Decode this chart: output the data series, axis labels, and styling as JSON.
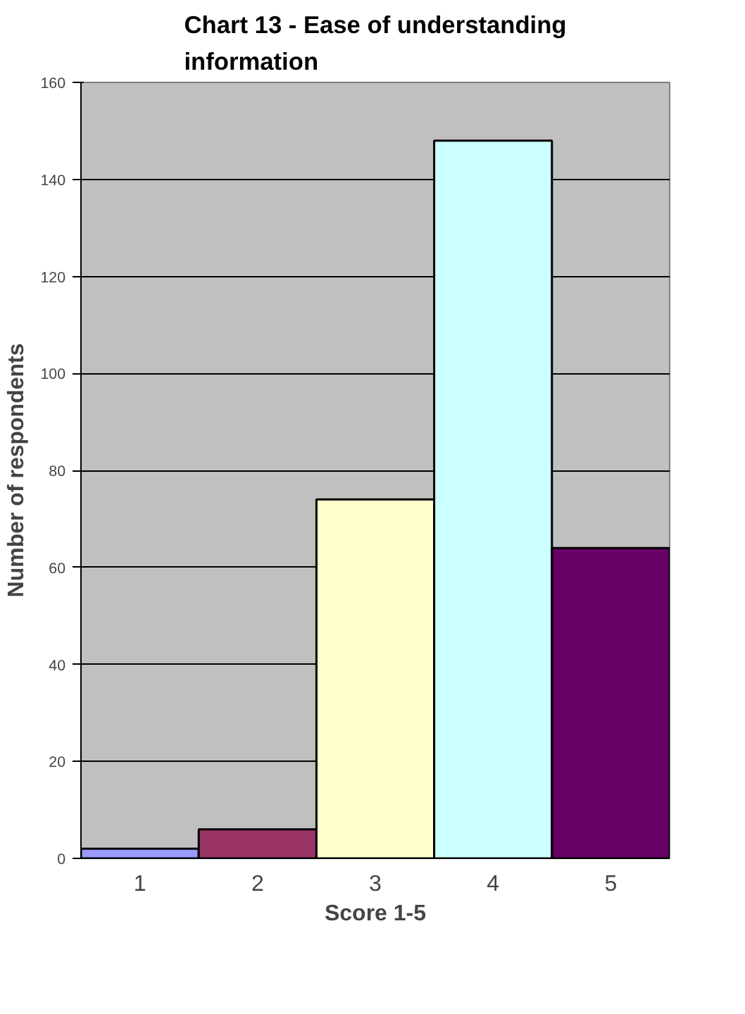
{
  "chart_data": {
    "type": "bar",
    "title": "Chart 13 - Ease of understanding information",
    "xlabel": "Score 1-5",
    "ylabel": "Number of respondents",
    "categories": [
      "1",
      "2",
      "3",
      "4",
      "5"
    ],
    "values": [
      2,
      6,
      74,
      148,
      64
    ],
    "colors": [
      "#9999ff",
      "#993366",
      "#ffffcc",
      "#ccffff",
      "#660066"
    ],
    "ylim": [
      0,
      160
    ],
    "yticks": [
      0,
      20,
      40,
      60,
      80,
      100,
      120,
      140,
      160
    ],
    "grid": "y"
  }
}
